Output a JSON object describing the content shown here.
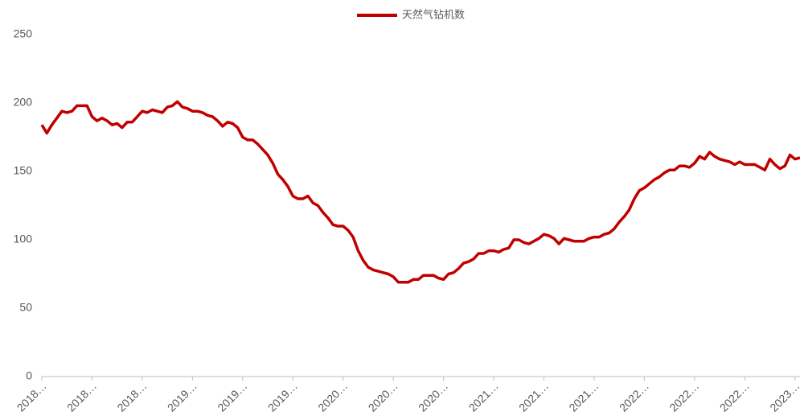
{
  "chart_data": {
    "type": "line",
    "x": [
      "2018…",
      null,
      null,
      null,
      null,
      null,
      null,
      null,
      null,
      null,
      "2018…",
      null,
      null,
      null,
      null,
      null,
      null,
      null,
      null,
      null,
      "2018…",
      null,
      null,
      null,
      null,
      null,
      null,
      null,
      null,
      null,
      "2019…",
      null,
      null,
      null,
      null,
      null,
      null,
      null,
      null,
      null,
      "2019…",
      null,
      null,
      null,
      null,
      null,
      null,
      null,
      null,
      null,
      "2019…",
      null,
      null,
      null,
      null,
      null,
      null,
      null,
      null,
      null,
      "2020…",
      null,
      null,
      null,
      null,
      null,
      null,
      null,
      null,
      null,
      "2020…",
      null,
      null,
      null,
      null,
      null,
      null,
      null,
      null,
      null,
      "2020…",
      null,
      null,
      null,
      null,
      null,
      null,
      null,
      null,
      null,
      "2021…",
      null,
      null,
      null,
      null,
      null,
      null,
      null,
      null,
      null,
      "2021…",
      null,
      null,
      null,
      null,
      null,
      null,
      null,
      null,
      null,
      "2021…",
      null,
      null,
      null,
      null,
      null,
      null,
      null,
      null,
      null,
      "2022…",
      null,
      null,
      null,
      null,
      null,
      null,
      null,
      null,
      null,
      "2022…",
      null,
      null,
      null,
      null,
      null,
      null,
      null,
      null,
      null,
      "2022…",
      null,
      null,
      null,
      null,
      null,
      null,
      null,
      null,
      null,
      "2023…",
      null
    ],
    "series": [
      {
        "name": "天然气钻机数",
        "color": "#c00000",
        "values": [
          184,
          178,
          184,
          189,
          194,
          193,
          194,
          198,
          198,
          198,
          190,
          187,
          189,
          187,
          184,
          185,
          182,
          186,
          186,
          190,
          194,
          193,
          195,
          194,
          193,
          197,
          198,
          201,
          197,
          196,
          194,
          194,
          193,
          191,
          190,
          187,
          183,
          186,
          185,
          182,
          175,
          173,
          173,
          170,
          166,
          162,
          156,
          148,
          144,
          139,
          132,
          130,
          130,
          132,
          127,
          125,
          120,
          116,
          111,
          110,
          110,
          107,
          102,
          92,
          85,
          80,
          78,
          77,
          76,
          75,
          73,
          69,
          69,
          69,
          71,
          71,
          74,
          74,
          74,
          72,
          71,
          75,
          76,
          79,
          83,
          84,
          86,
          90,
          90,
          92,
          92,
          91,
          93,
          94,
          100,
          100,
          98,
          97,
          99,
          101,
          104,
          103,
          101,
          97,
          101,
          100,
          99,
          99,
          99,
          101,
          102,
          102,
          104,
          105,
          108,
          113,
          117,
          122,
          130,
          136,
          138,
          141,
          144,
          146,
          149,
          151,
          151,
          154,
          154,
          153,
          156,
          161,
          159,
          164,
          161,
          159,
          158,
          157,
          155,
          157,
          155,
          155,
          155,
          153,
          151,
          159,
          155,
          152,
          154,
          162,
          159,
          160
        ]
      }
    ],
    "ylim": [
      0,
      250
    ],
    "yticks": [
      0,
      50,
      100,
      150,
      200,
      250
    ],
    "grid": false,
    "legend": "top"
  }
}
